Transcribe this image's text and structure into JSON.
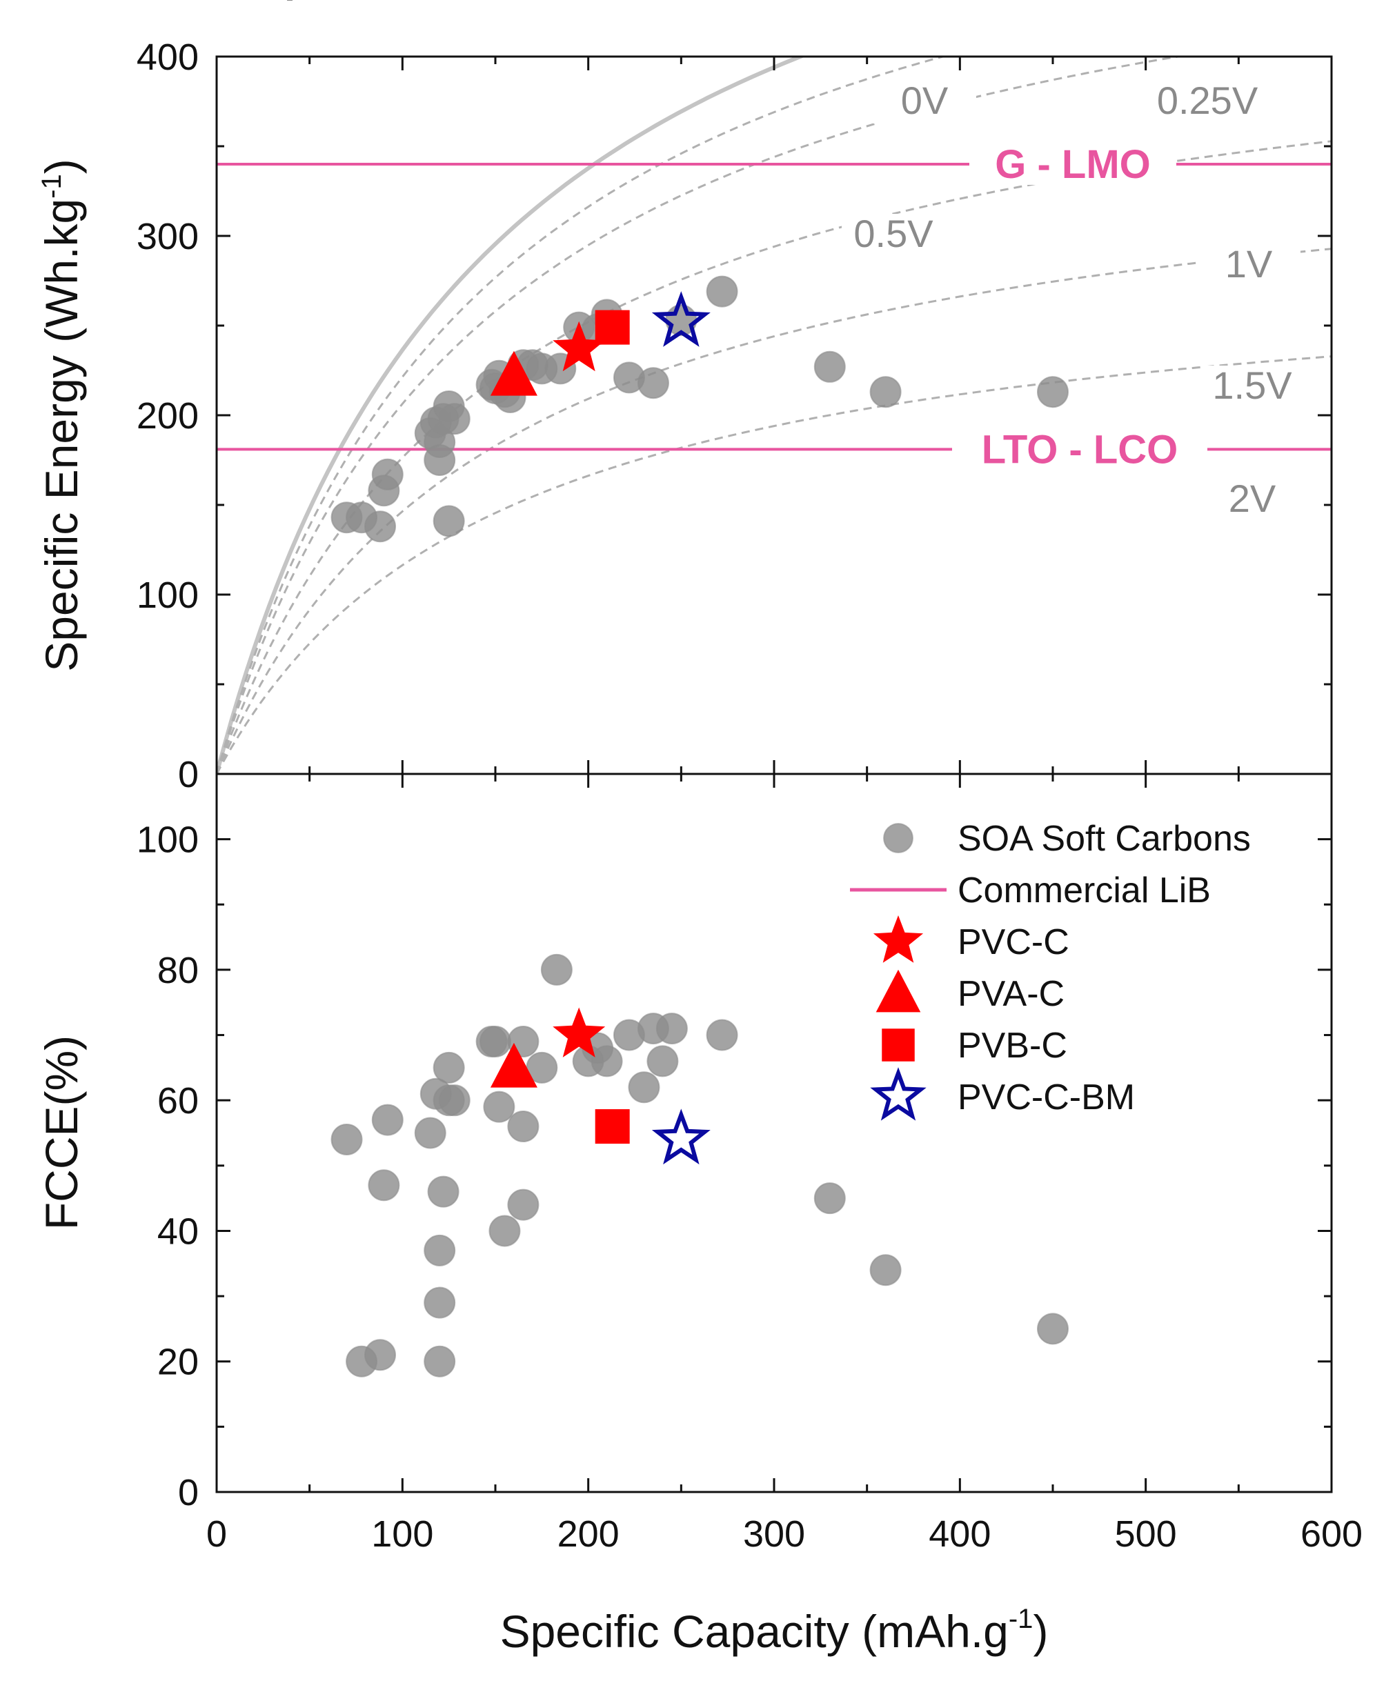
{
  "chart_data": [
    {
      "id": "top",
      "type": "scatter",
      "ylabel": "Specific Energy (Wh.kg-1)",
      "ylabel_main": "Specific Energy (Wh.kg",
      "ylabel_sup": "-1",
      "ylabel_close": ")",
      "xlim": [
        0,
        600
      ],
      "ylim": [
        0,
        400
      ],
      "x_ticks": [
        0,
        100,
        200,
        300,
        400,
        500,
        600
      ],
      "y_ticks": [
        0,
        100,
        200,
        300,
        400
      ],
      "voltage_curves": [
        {
          "label": "0V",
          "voltage": 0,
          "style": "solid"
        },
        {
          "label": "0.25V",
          "voltage": 0.25,
          "style": "dashed"
        },
        {
          "label": "0.5V",
          "voltage": 0.5,
          "style": "dashed"
        },
        {
          "label": "1V",
          "voltage": 1.0,
          "style": "dashed"
        },
        {
          "label": "1.5V",
          "voltage": 1.5,
          "style": "dashed"
        },
        {
          "label": "2V",
          "voltage": 2.0,
          "style": "dashed"
        }
      ],
      "reference_lines": [
        {
          "label": "G - LMO",
          "y": 340
        },
        {
          "label": "LTO - LCO",
          "y": 181
        }
      ],
      "series": [
        {
          "name": "SOA Soft Carbons",
          "marker": "circle",
          "points": [
            [
              70,
              143
            ],
            [
              78,
              143
            ],
            [
              88,
              138
            ],
            [
              90,
              158
            ],
            [
              92,
              167
            ],
            [
              115,
              190
            ],
            [
              118,
              196
            ],
            [
              120,
              185
            ],
            [
              120,
              175
            ],
            [
              122,
              198
            ],
            [
              125,
              205
            ],
            [
              128,
              198
            ],
            [
              125,
              141
            ],
            [
              148,
              217
            ],
            [
              150,
              215
            ],
            [
              152,
              222
            ],
            [
              155,
              213
            ],
            [
              158,
              210
            ],
            [
              165,
              228
            ],
            [
              170,
              228
            ],
            [
              175,
              226
            ],
            [
              185,
              226
            ],
            [
              195,
              249
            ],
            [
              205,
              248
            ],
            [
              210,
              256
            ],
            [
              222,
              221
            ],
            [
              235,
              218
            ],
            [
              250,
              253
            ],
            [
              272,
              269
            ],
            [
              330,
              227
            ],
            [
              360,
              213
            ],
            [
              450,
              213
            ]
          ]
        },
        {
          "name": "PVC-C",
          "marker": "star",
          "points": [
            [
              195,
              237
            ]
          ]
        },
        {
          "name": "PVA-C",
          "marker": "triangle",
          "points": [
            [
              160,
              222
            ]
          ]
        },
        {
          "name": "PVB-C",
          "marker": "square",
          "points": [
            [
              213,
              249
            ]
          ]
        },
        {
          "name": "PVC-C-BM",
          "marker": "star-open",
          "points": [
            [
              250,
              252
            ]
          ]
        }
      ]
    },
    {
      "id": "bottom",
      "type": "scatter",
      "xlabel": "Specific Capacity (mAh.g-1)",
      "xlabel_main": "Specific Capacity (mAh.g",
      "xlabel_sup": "-1",
      "xlabel_close": ")",
      "ylabel": "FCCE(%)",
      "xlim": [
        0,
        600
      ],
      "ylim": [
        0,
        110
      ],
      "x_ticks": [
        0,
        100,
        200,
        300,
        400,
        500,
        600
      ],
      "y_ticks": [
        0,
        20,
        40,
        60,
        80,
        100
      ],
      "series": [
        {
          "name": "SOA Soft Carbons",
          "marker": "circle",
          "points": [
            [
              70,
              54
            ],
            [
              78,
              20
            ],
            [
              88,
              21
            ],
            [
              90,
              47
            ],
            [
              92,
              57
            ],
            [
              115,
              55
            ],
            [
              118,
              61
            ],
            [
              120,
              37
            ],
            [
              120,
              29
            ],
            [
              120,
              20
            ],
            [
              122,
              46
            ],
            [
              125,
              65
            ],
            [
              128,
              60
            ],
            [
              125,
              60
            ],
            [
              148,
              69
            ],
            [
              150,
              69
            ],
            [
              152,
              59
            ],
            [
              155,
              40
            ],
            [
              165,
              69
            ],
            [
              165,
              56
            ],
            [
              165,
              44
            ],
            [
              175,
              65
            ],
            [
              183,
              80
            ],
            [
              200,
              66
            ],
            [
              205,
              68
            ],
            [
              210,
              66
            ],
            [
              222,
              70
            ],
            [
              230,
              62
            ],
            [
              235,
              71
            ],
            [
              240,
              66
            ],
            [
              245,
              71
            ],
            [
              272,
              70
            ],
            [
              330,
              45
            ],
            [
              360,
              34
            ],
            [
              450,
              25
            ]
          ]
        },
        {
          "name": "PVC-C",
          "marker": "star",
          "points": [
            [
              195,
              70
            ]
          ]
        },
        {
          "name": "PVA-C",
          "marker": "triangle",
          "points": [
            [
              160,
              65
            ]
          ]
        },
        {
          "name": "PVB-C",
          "marker": "square",
          "points": [
            [
              213,
              56
            ]
          ]
        },
        {
          "name": "PVC-C-BM",
          "marker": "star-open",
          "points": [
            [
              250,
              54
            ]
          ]
        }
      ],
      "legend": {
        "position": "top-right",
        "entries": [
          {
            "label": "SOA Soft Carbons",
            "marker": "circle"
          },
          {
            "label": "Commercial LiB",
            "marker": "line"
          },
          {
            "label": "PVC-C",
            "marker": "star"
          },
          {
            "label": "PVA-C",
            "marker": "triangle"
          },
          {
            "label": "PVB-C",
            "marker": "square"
          },
          {
            "label": "PVC-C-BM",
            "marker": "star-open"
          }
        ]
      }
    }
  ],
  "colors": {
    "soa": "#8c8c8c",
    "soa_edge": "#8c8c8c",
    "red": "#ff0000",
    "navy": "#0a0aa0",
    "pink": "#e8559f",
    "curve_solid": "#c4c4c4",
    "curve_dashed": "#b0b0b0",
    "axis": "#111111"
  },
  "header_fragment": "p"
}
